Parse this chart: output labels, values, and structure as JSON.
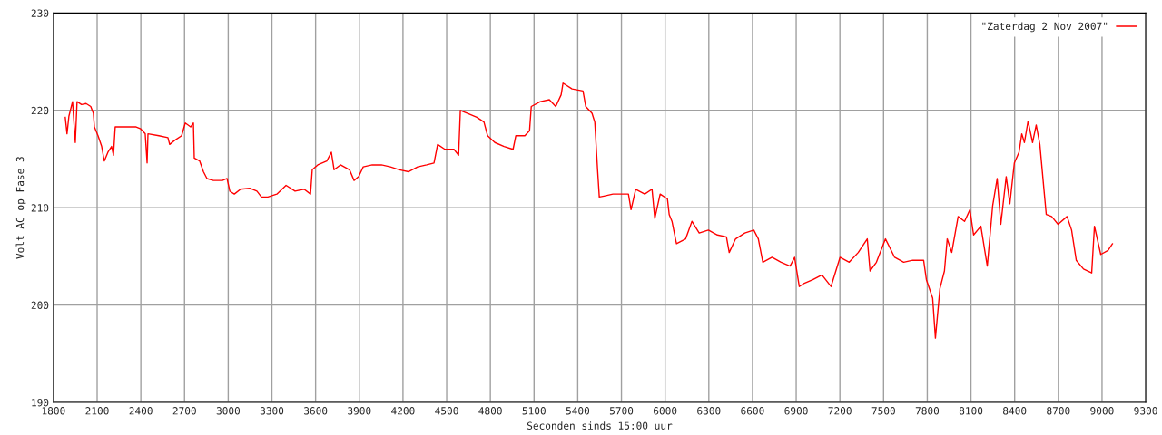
{
  "chart_data": {
    "type": "line",
    "xlabel": "Seconden sinds 15:00 uur",
    "ylabel": "Volt AC op Fase 3",
    "xlim": [
      1800,
      9300
    ],
    "xticks": [
      1800,
      2100,
      2400,
      2700,
      3000,
      3300,
      3600,
      3900,
      4200,
      4500,
      4800,
      5100,
      5400,
      5700,
      6000,
      6300,
      6600,
      6900,
      7200,
      7500,
      7800,
      8100,
      8400,
      8700,
      9000,
      9300
    ],
    "ylim": [
      190,
      230
    ],
    "yticks": [
      190,
      200,
      210,
      220,
      230
    ],
    "grid": true,
    "legend": "top right",
    "series": [
      {
        "name": "\"Zaterdag 2 Nov 2007\"",
        "color": "#ff0000",
        "x": [
          1881,
          1893,
          1906,
          1931,
          1950,
          1962,
          1993,
          2024,
          2056,
          2074,
          2081,
          2106,
          2131,
          2149,
          2174,
          2199,
          2212,
          2224,
          2274,
          2336,
          2368,
          2399,
          2430,
          2443,
          2449,
          2524,
          2586,
          2598,
          2630,
          2680,
          2705,
          2742,
          2761,
          2767,
          2804,
          2830,
          2854,
          2898,
          2960,
          2992,
          3011,
          3042,
          3085,
          3148,
          3197,
          3228,
          3272,
          3334,
          3397,
          3459,
          3521,
          3565,
          3577,
          3615,
          3677,
          3708,
          3727,
          3771,
          3833,
          3864,
          3896,
          3927,
          3989,
          4052,
          4114,
          4176,
          4239,
          4301,
          4363,
          4413,
          4438,
          4488,
          4550,
          4582,
          4594,
          4644,
          4707,
          4756,
          4781,
          4831,
          4894,
          4956,
          4975,
          5037,
          5069,
          5081,
          5143,
          5205,
          5249,
          5286,
          5299,
          5361,
          5436,
          5455,
          5498,
          5517,
          5536,
          5548,
          5580,
          5642,
          5704,
          5748,
          5766,
          5798,
          5860,
          5910,
          5929,
          5966,
          6016,
          6028,
          6047,
          6078,
          6141,
          6184,
          6234,
          6297,
          6359,
          6421,
          6440,
          6484,
          6547,
          6609,
          6640,
          6671,
          6734,
          6796,
          6858,
          6889,
          6921,
          6952,
          7014,
          7077,
          7139,
          7201,
          7264,
          7326,
          7388,
          7407,
          7451,
          7513,
          7576,
          7638,
          7700,
          7775,
          7794,
          7837,
          7856,
          7887,
          7918,
          7937,
          7968,
          8012,
          8056,
          8093,
          8118,
          8168,
          8212,
          8249,
          8280,
          8305,
          8342,
          8367,
          8398,
          8430,
          8449,
          8467,
          8492,
          8523,
          8548,
          8573,
          8604,
          8617,
          8654,
          8698,
          8760,
          8791,
          8823,
          8873,
          8929,
          8948,
          8991,
          9041,
          9072
        ],
        "values": [
          219.3,
          217.6,
          219.4,
          220.9,
          216.7,
          220.9,
          220.6,
          220.7,
          220.4,
          219.7,
          218.3,
          217.4,
          216.3,
          214.8,
          215.7,
          216.3,
          215.4,
          218.3,
          218.3,
          218.3,
          218.3,
          218.1,
          217.6,
          214.6,
          217.6,
          217.4,
          217.2,
          216.5,
          216.9,
          217.4,
          218.7,
          218.3,
          218.7,
          215.1,
          214.8,
          213.7,
          213.0,
          212.8,
          212.8,
          213.0,
          211.7,
          211.4,
          211.9,
          212.0,
          211.7,
          211.1,
          211.1,
          211.4,
          212.3,
          211.7,
          211.9,
          211.4,
          213.9,
          214.4,
          214.8,
          215.7,
          213.9,
          214.4,
          213.9,
          212.8,
          213.2,
          214.2,
          214.4,
          214.4,
          214.2,
          213.9,
          213.7,
          214.2,
          214.4,
          214.6,
          216.5,
          216.0,
          216.0,
          215.4,
          220.0,
          219.7,
          219.3,
          218.8,
          217.4,
          216.7,
          216.3,
          216.0,
          217.4,
          217.4,
          217.9,
          220.4,
          220.9,
          221.1,
          220.4,
          221.6,
          222.8,
          222.2,
          222.0,
          220.4,
          219.7,
          218.8,
          213.9,
          211.1,
          211.2,
          211.4,
          211.4,
          211.4,
          209.8,
          211.9,
          211.4,
          211.9,
          208.9,
          211.4,
          210.9,
          209.3,
          208.6,
          206.3,
          206.8,
          208.6,
          207.4,
          207.7,
          207.2,
          207.0,
          205.4,
          206.8,
          207.4,
          207.7,
          206.8,
          204.4,
          204.9,
          204.4,
          204.0,
          204.9,
          201.9,
          202.2,
          202.6,
          203.1,
          201.9,
          204.9,
          204.4,
          205.4,
          206.8,
          203.5,
          204.4,
          206.8,
          204.9,
          204.4,
          204.6,
          204.6,
          202.6,
          200.7,
          196.6,
          201.7,
          203.5,
          206.8,
          205.4,
          209.1,
          208.6,
          209.8,
          207.2,
          208.1,
          204.0,
          210.2,
          213.0,
          208.3,
          213.2,
          210.4,
          214.6,
          215.7,
          217.6,
          216.7,
          218.9,
          216.7,
          218.5,
          216.5,
          211.4,
          209.3,
          209.1,
          208.3,
          209.1,
          207.7,
          204.6,
          203.7,
          203.3,
          208.1,
          205.2,
          205.6,
          206.3
        ]
      }
    ]
  }
}
